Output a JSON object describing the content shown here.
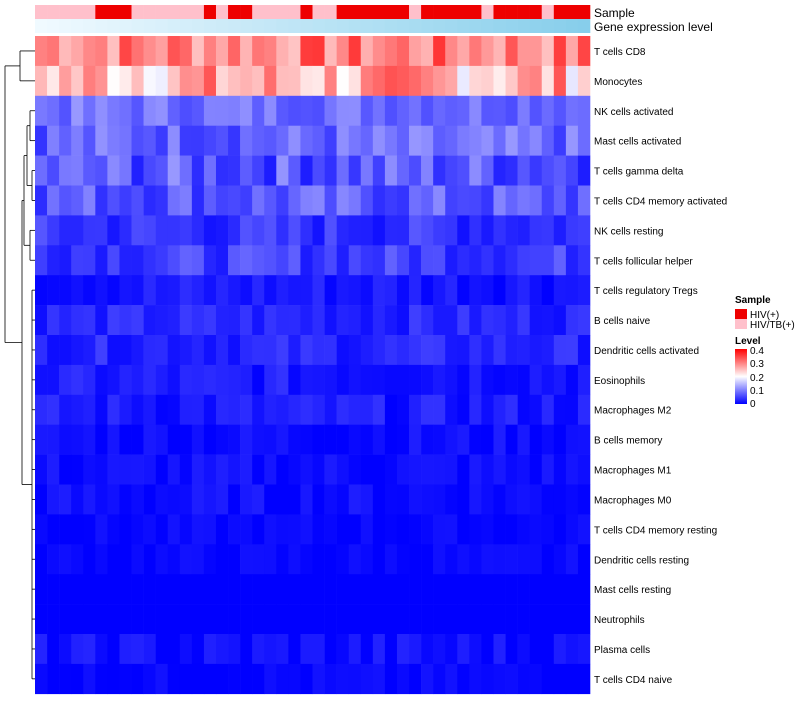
{
  "chart_data": {
    "type": "heatmap",
    "title": "",
    "columns": 46,
    "annotation_labels": {
      "sample": "Sample",
      "expression": "Gene expression level"
    },
    "sample_annotation": [
      "HIV/TB(+)",
      "HIV/TB(+)",
      "HIV/TB(+)",
      "HIV/TB(+)",
      "HIV/TB(+)",
      "HIV(+)",
      "HIV(+)",
      "HIV(+)",
      "HIV/TB(+)",
      "HIV/TB(+)",
      "HIV/TB(+)",
      "HIV/TB(+)",
      "HIV/TB(+)",
      "HIV/TB(+)",
      "HIV(+)",
      "HIV/TB(+)",
      "HIV(+)",
      "HIV(+)",
      "HIV/TB(+)",
      "HIV/TB(+)",
      "HIV/TB(+)",
      "HIV/TB(+)",
      "HIV(+)",
      "HIV/TB(+)",
      "HIV/TB(+)",
      "HIV(+)",
      "HIV(+)",
      "HIV(+)",
      "HIV(+)",
      "HIV(+)",
      "HIV(+)",
      "HIV/TB(+)",
      "HIV(+)",
      "HIV(+)",
      "HIV(+)",
      "HIV(+)",
      "HIV(+)",
      "HIV/TB(+)",
      "HIV(+)",
      "HIV(+)",
      "HIV(+)",
      "HIV(+)",
      "HIV/TB(+)",
      "HIV(+)",
      "HIV(+)",
      "HIV(+)"
    ],
    "rows": [
      "T cells CD8",
      "Monocytes",
      "NK cells activated",
      "Mast cells activated",
      "T cells gamma delta",
      "T cells CD4 memory activated",
      "NK cells resting",
      "T cells follicular helper",
      "T cells regulatory  Tregs",
      "B cells naive",
      "Dendritic cells activated",
      "Eosinophils",
      "Macrophages M2",
      "B cells memory",
      "Macrophages M1",
      "Macrophages M0",
      "T cells CD4 memory resting",
      "Dendritic cells resting",
      "Mast cells resting",
      "Neutrophils",
      "Plasma cells",
      "T cells CD4 naive"
    ],
    "row_means": [
      0.3,
      0.26,
      0.09,
      0.08,
      0.07,
      0.07,
      0.04,
      0.05,
      0.02,
      0.03,
      0.03,
      0.02,
      0.02,
      0.01,
      0.01,
      0.01,
      0.005,
      0.005,
      0.0,
      0.0,
      0.01,
      0.005
    ],
    "row_spread": [
      0.06,
      0.08,
      0.03,
      0.04,
      0.05,
      0.04,
      0.03,
      0.03,
      0.02,
      0.02,
      0.02,
      0.02,
      0.02,
      0.015,
      0.015,
      0.015,
      0.01,
      0.01,
      0.0,
      0.0,
      0.02,
      0.01
    ],
    "legend": {
      "sample_title": "Sample",
      "sample_levels": [
        {
          "label": "HIV(+)",
          "color": "#ee0000"
        },
        {
          "label": "HIV/TB(+)",
          "color": "#ffc0cb"
        }
      ],
      "level_title": "Level",
      "level_ticks": [
        "0.4",
        "0.3",
        "0.2",
        "0.1",
        "0"
      ],
      "level_range": [
        0,
        0.4
      ]
    },
    "colors": {
      "low": "#0000ff",
      "mid": "#ffffff",
      "high": "#ff0000",
      "expression_bar": "#87ceeb"
    }
  }
}
